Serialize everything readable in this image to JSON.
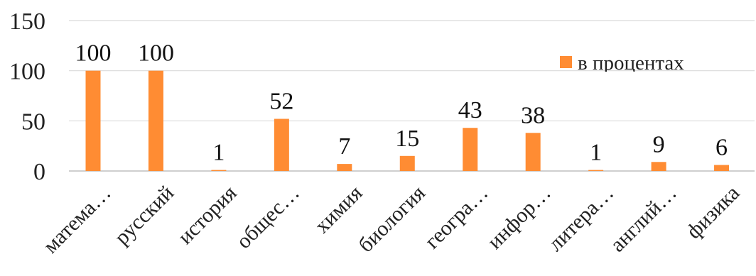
{
  "chart_data": {
    "type": "bar",
    "categories": [
      "матема…",
      "русский",
      "история",
      "общес…",
      "химия",
      "биология",
      "геогра…",
      "инфор…",
      "литера…",
      "англий…",
      "физика"
    ],
    "series": [
      {
        "name": "в процентах",
        "values": [
          100,
          100,
          1,
          52,
          7,
          15,
          43,
          38,
          1,
          9,
          6
        ]
      }
    ],
    "data_labels": [
      "100",
      "100",
      "1",
      "52",
      "7",
      "15",
      "43",
      "38",
      "1",
      "9",
      "6"
    ],
    "y_ticks": [
      "0",
      "50",
      "100",
      "150"
    ],
    "ylim": [
      0,
      150
    ],
    "grid": true,
    "legend_position": "top-right",
    "colors": {
      "bar": "#FF8C33",
      "grid": "#D9D9D9",
      "axis": "#BFBFBF"
    }
  }
}
